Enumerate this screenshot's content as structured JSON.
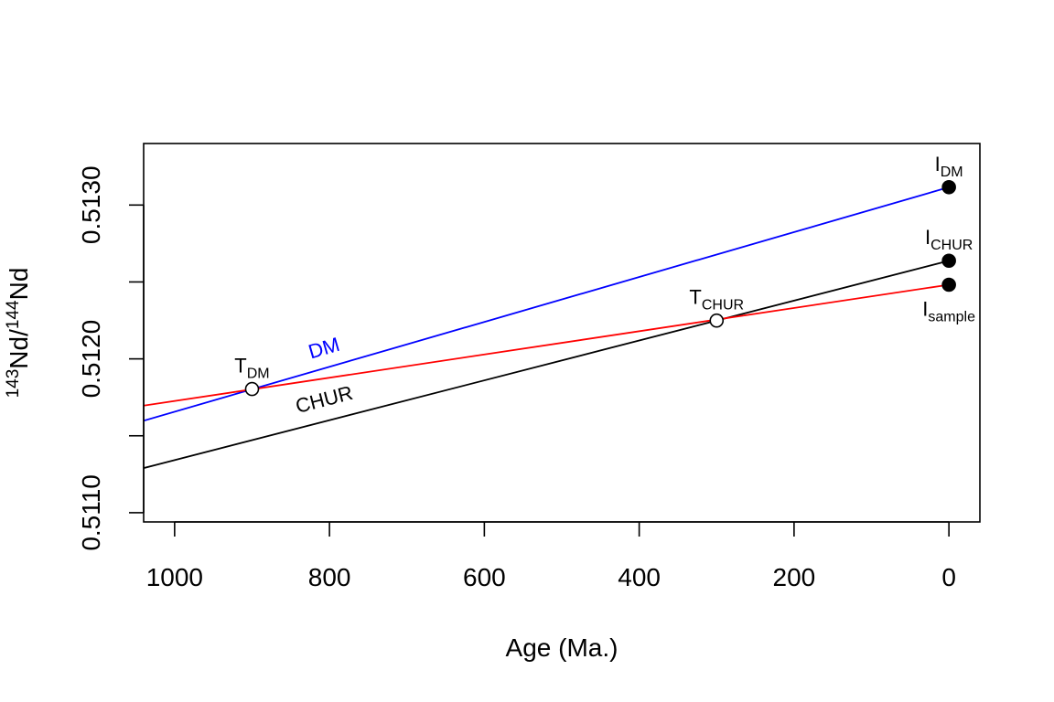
{
  "chart_data": {
    "type": "line",
    "title": "",
    "xlabel": "Age (Ma.)",
    "ylabel": {
      "sup1": "143",
      "base1": "Nd/",
      "sup2": "144",
      "base2": "Nd"
    },
    "xlim": [
      1040,
      -40
    ],
    "ylim": [
      0.51094,
      0.5134
    ],
    "x_ticks": [
      1000,
      800,
      600,
      400,
      200,
      0
    ],
    "x_tick_labels": [
      "1000",
      "800",
      "600",
      "400",
      "200",
      "0"
    ],
    "y_ticks": [
      0.511,
      0.5115,
      0.512,
      0.5125,
      0.513
    ],
    "y_tick_labels": [
      "0.5110",
      "",
      "0.5120",
      "",
      "0.5130"
    ],
    "grid": false,
    "legend": "none",
    "series": [
      {
        "name": "DM",
        "color": "#0000ff",
        "x": [
          1040,
          0
        ],
        "y": [
          0.511598,
          0.513116
        ],
        "label_at": 800,
        "label_offset": 14
      },
      {
        "name": "CHUR",
        "color": "#000000",
        "x": [
          1040,
          0
        ],
        "y": [
          0.51129,
          0.512638
        ],
        "label_at": 800,
        "label_offset": 16
      },
      {
        "name": "",
        "color": "#ff0000",
        "x": [
          1040,
          0
        ],
        "y": [
          0.511696,
          0.512482
        ]
      }
    ],
    "points": [
      {
        "base": "I",
        "sub": "DM",
        "x": 0,
        "y": 0.513116,
        "filled": true,
        "label_pos": "above"
      },
      {
        "base": "I",
        "sub": "CHUR",
        "x": 0,
        "y": 0.512638,
        "filled": true,
        "label_pos": "above"
      },
      {
        "base": "I",
        "sub": "sample",
        "x": 0,
        "y": 0.512482,
        "filled": true,
        "label_pos": "below"
      },
      {
        "base": "T",
        "sub": "DM",
        "x": 900,
        "y": 0.511804,
        "filled": false,
        "label_pos": "above"
      },
      {
        "base": "T",
        "sub": "CHUR",
        "x": 300,
        "y": 0.512249,
        "filled": false,
        "label_pos": "above"
      }
    ]
  }
}
